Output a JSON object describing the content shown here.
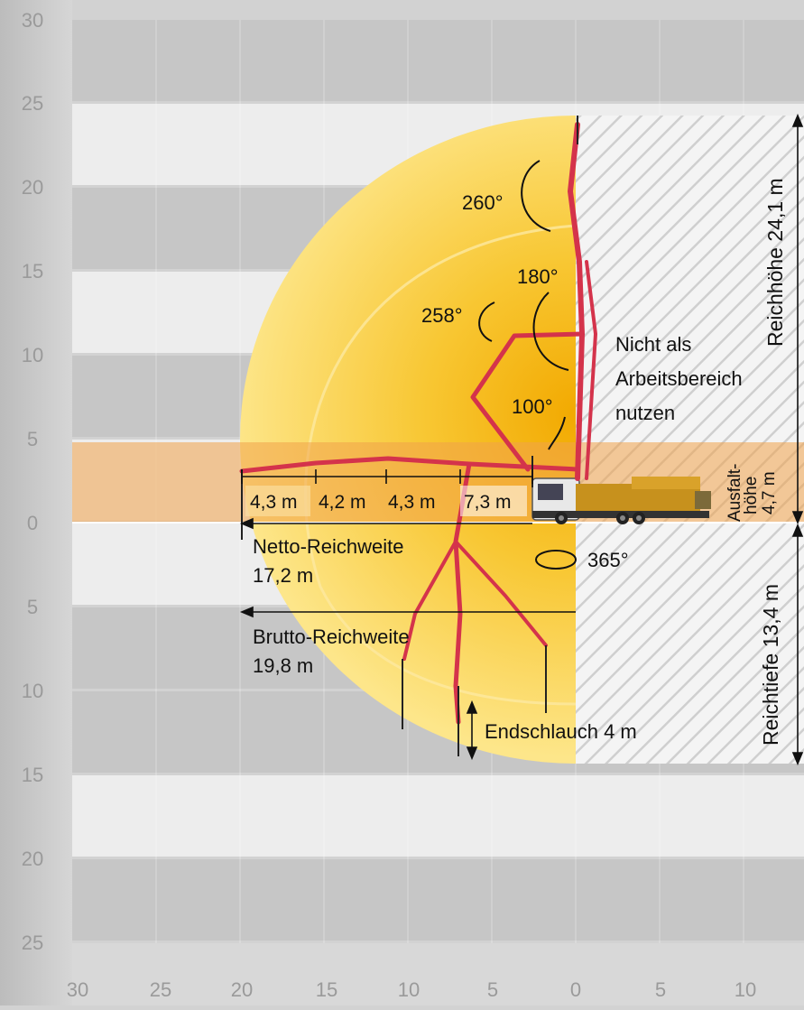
{
  "scale": {
    "y_top_labels": [
      "30",
      "25",
      "20",
      "15",
      "10",
      "5",
      "0"
    ],
    "y_bottom_labels": [
      "5",
      "10",
      "15",
      "20",
      "25"
    ],
    "x_labels": [
      "30",
      "25",
      "20",
      "15",
      "10",
      "5",
      "0",
      "5",
      "10"
    ]
  },
  "angles": {
    "a260": "260°",
    "a180": "180°",
    "a258": "258°",
    "a100": "100°",
    "a365": "365°"
  },
  "segments": [
    "4,3 m",
    "4,2 m",
    "4,3 m",
    "7,3 m"
  ],
  "labels": {
    "no_work_zone": [
      "Nicht als",
      "Arbeitsbereich",
      "nutzen"
    ],
    "reach_height": "Reichhöhe 24,1 m",
    "unfold_height": [
      "Ausfalt-",
      "höhe",
      "4,7 m"
    ],
    "reach_depth": "Reichtiefe 13,4 m",
    "net_reach": [
      "Netto-Reichweite",
      "17,2 m"
    ],
    "gross_reach": [
      "Brutto-Reichweite",
      "19,8 m"
    ],
    "end_hose": "Endschlauch 4 m"
  },
  "colors": {
    "stripe_dark": "#c9c9c9",
    "stripe_light": "#ececec",
    "zone_yellow": "#fde27a",
    "zone_orange": "#f3b437",
    "boom_red": "#d4334b",
    "band_orange": "#f0b27a"
  }
}
